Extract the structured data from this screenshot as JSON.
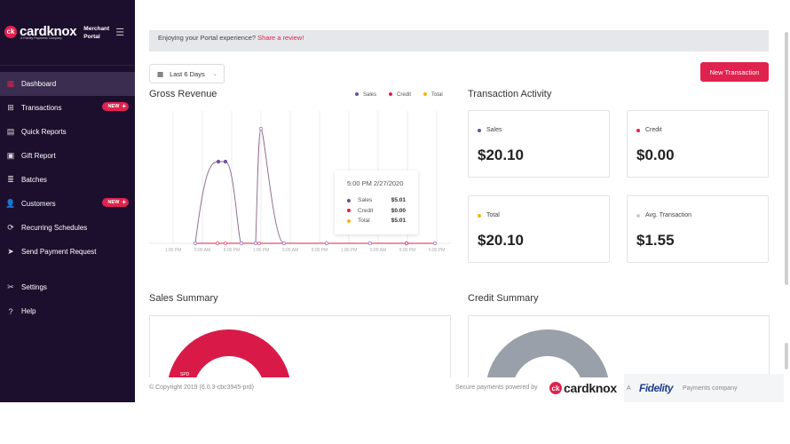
{
  "brand": {
    "logo_text": "cardknox",
    "logo_sub": "A Fidelity Payments Company",
    "portal_label": "Merchant Portal"
  },
  "nav": {
    "items": [
      {
        "label": "Dashboard"
      },
      {
        "label": "Transactions",
        "badge": "NEW"
      },
      {
        "label": "Quick Reports"
      },
      {
        "label": "Gift Report"
      },
      {
        "label": "Batches"
      },
      {
        "label": "Customers",
        "badge": "NEW"
      },
      {
        "label": "Recurring Schedules"
      },
      {
        "label": "Send Payment Request"
      }
    ],
    "bottom_items": [
      {
        "label": "Settings"
      },
      {
        "label": "Help"
      }
    ]
  },
  "banner": {
    "text": "Enjoying your Portal experience?",
    "link": "Share a review!"
  },
  "date_filter": {
    "label": "Last 6 Days"
  },
  "new_transaction_label": "New Transaction",
  "gross_revenue": {
    "title": "Gross Revenue"
  },
  "chart_data": {
    "type": "line",
    "title": "Gross Revenue",
    "legend": [
      "Sales",
      "Credit",
      "Total"
    ],
    "legend_position": "top-right",
    "colors": {
      "Sales": "#6b4fa0",
      "Credit": "#e0224f",
      "Total": "#f2b619"
    },
    "x_tick_labels": [
      "1:00 PM",
      "5:00 AM",
      "9:00 PM",
      "1:00 PM",
      "5:00 AM",
      "9:00 PM",
      "1:00 PM",
      "5:00 AM",
      "9:00 PM",
      "5:00 PM"
    ],
    "grid": true,
    "tooltip": {
      "title": "5:00 PM 2/27/2020",
      "rows": [
        {
          "name": "Sales",
          "value": "$5.01"
        },
        {
          "name": "Credit",
          "value": "$0.00"
        },
        {
          "name": "Total",
          "value": "$5.01"
        }
      ]
    }
  },
  "transaction_activity": {
    "title": "Transaction Activity",
    "cards": [
      {
        "label": "Sales",
        "value": "$20.10",
        "color": "#6b4fa0"
      },
      {
        "label": "Credit",
        "value": "$0.00",
        "color": "#e0224f"
      },
      {
        "label": "Total",
        "value": "$20.10",
        "color": "#f2b619"
      },
      {
        "label": "Avg. Transaction",
        "value": "$1.55",
        "color": "#cccccc"
      }
    ]
  },
  "sales_summary": {
    "title": "Sales Summary",
    "donut_label": "SPD"
  },
  "credit_summary": {
    "title": "Credit Summary"
  },
  "footer": {
    "copyright": "© Copyright 2019 (6.0.3-cbc3945-prd)",
    "powered_by": "Secure payments powered by",
    "logo_text": "cardknox",
    "a": "A",
    "fidelity": "Fidelity",
    "fidelity_sub": "Payments company"
  }
}
